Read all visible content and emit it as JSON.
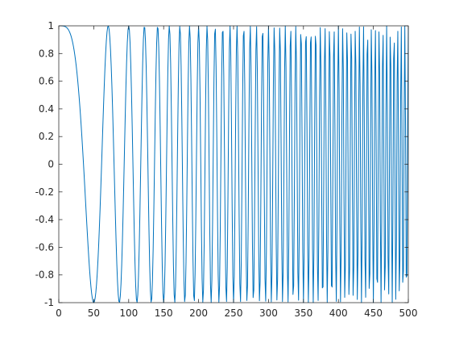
{
  "chart_data": {
    "type": "line",
    "title": "",
    "xlabel": "",
    "ylabel": "",
    "xlim": [
      0,
      500
    ],
    "ylim": [
      -1,
      1
    ],
    "grid": false,
    "legend": "none",
    "x_ticks": [
      0,
      50,
      100,
      150,
      200,
      250,
      300,
      350,
      400,
      450,
      500
    ],
    "y_ticks": [
      -1,
      -0.8,
      -0.6,
      -0.4,
      -0.2,
      0,
      0.2,
      0.4,
      0.6,
      0.8,
      1
    ],
    "x_tick_labels": [
      "0",
      "50",
      "100",
      "150",
      "200",
      "250",
      "300",
      "350",
      "400",
      "450",
      "500"
    ],
    "y_tick_labels": [
      "-1",
      "-0.8",
      "-0.6",
      "-0.4",
      "-0.2",
      "0",
      "0.2",
      "0.4",
      "0.6",
      "0.8",
      "1"
    ],
    "series": [
      {
        "color": "#0072bd",
        "function": "cos(pi * x^2 / 2500)",
        "x_start": 0,
        "x_end": 500,
        "x_step": 1
      }
    ]
  }
}
